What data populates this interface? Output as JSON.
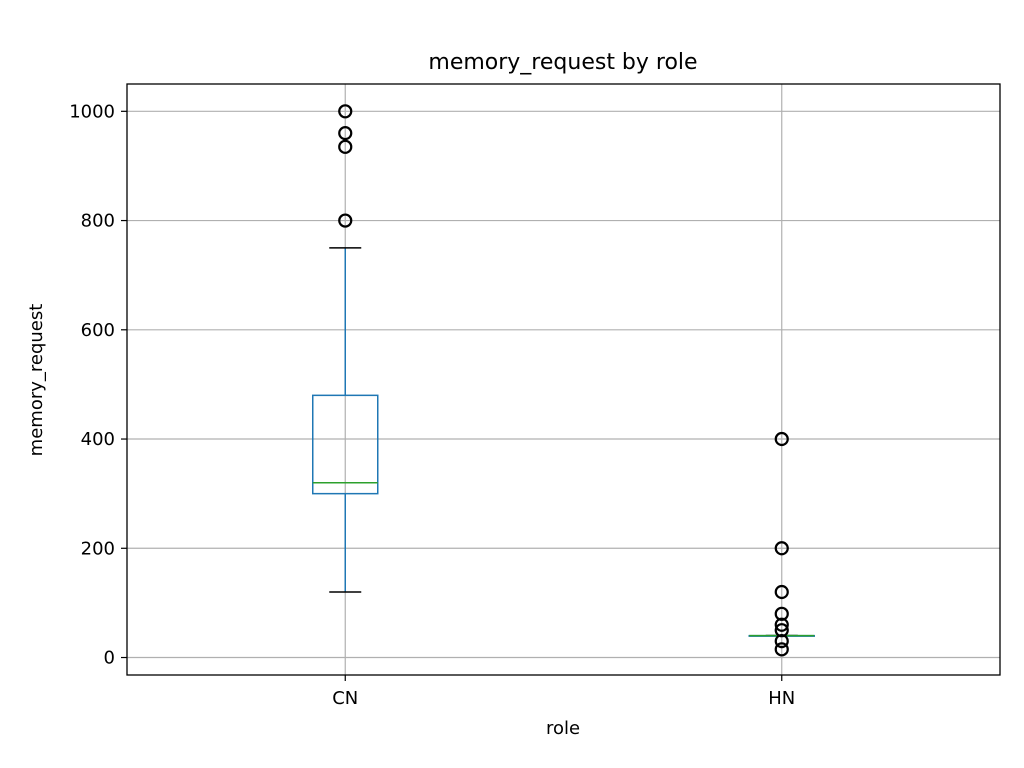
{
  "chart_data": {
    "type": "box",
    "title": "memory_request by role",
    "xlabel": "role",
    "ylabel": "memory_request",
    "ylim": [
      -32,
      1050
    ],
    "yticks": [
      0,
      200,
      400,
      600,
      800,
      1000
    ],
    "grid": true,
    "categories": [
      "CN",
      "HN"
    ],
    "boxes": [
      {
        "category": "CN",
        "whisker_low": 120,
        "q1": 300,
        "median": 320,
        "q3": 480,
        "whisker_high": 750,
        "outliers": [
          800,
          935,
          960,
          1000
        ]
      },
      {
        "category": "HN",
        "whisker_low": 40,
        "q1": 40,
        "median": 40,
        "q3": 40,
        "whisker_high": 40,
        "outliers": [
          15,
          30,
          50,
          60,
          80,
          120,
          200,
          400
        ]
      }
    ]
  },
  "colors": {
    "box": "#1f77b4",
    "median": "#2ca02c",
    "whisker_cap": "#000000",
    "outlier": "#000000",
    "grid": "#b0b0b0",
    "axes": "#000000"
  }
}
